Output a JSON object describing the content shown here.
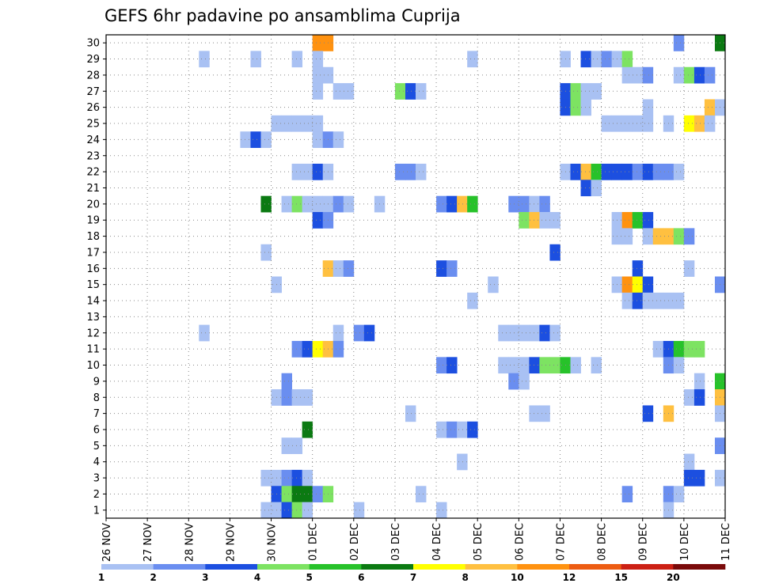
{
  "chart_data": {
    "type": "heatmap",
    "title": "GEFS 6hr padavine po ansamblima Cuprija",
    "x_start": "2025-11-26 00",
    "x_step_hours": 6,
    "x_ticks": [
      "26 NOV",
      "27 NOV",
      "28 NOV",
      "29 NOV",
      "30 NOV",
      "01 DEC",
      "02 DEC",
      "03 DEC",
      "04 DEC",
      "05 DEC",
      "06 DEC",
      "07 DEC",
      "08 DEC",
      "09 DEC",
      "10 DEC",
      "11 DEC"
    ],
    "y_ticks": [
      "1",
      "2",
      "3",
      "4",
      "5",
      "6",
      "7",
      "8",
      "9",
      "10",
      "11",
      "12",
      "13",
      "14",
      "15",
      "16",
      "17",
      "18",
      "19",
      "20",
      "21",
      "22",
      "23",
      "24",
      "25",
      "26",
      "27",
      "28",
      "29",
      "30"
    ],
    "grid": true,
    "legend": {
      "placement": "bottom",
      "labels": [
        "1",
        "2",
        "3",
        "4",
        "5",
        "6",
        "7",
        "8",
        "10",
        "12",
        "15",
        "20"
      ],
      "colors": [
        "#a9c1f3",
        "#6a8ef0",
        "#1c4fe0",
        "#7de362",
        "#27c22a",
        "#0b7a12",
        "#ffff00",
        "#ffc040",
        "#ff9210",
        "#ed5c12",
        "#cc2014",
        "#7a0a0a"
      ]
    },
    "level_scale": "1 = 1-2, 2 = 2-3, 3 = 3-4, 4 = 4-5, 5 = 5-6, 6 = 6-7, 7 = 7-8, 8 = 8-10, 9 = 10-12, 10 = 12-15, 11 = 15-20",
    "members": [
      {
        "member": 30,
        "cells": [
          [
            20,
            9
          ],
          [
            21,
            9
          ],
          [
            55,
            2
          ],
          [
            59,
            6
          ]
        ]
      },
      {
        "member": 29,
        "cells": [
          [
            9,
            1
          ],
          [
            14,
            1
          ],
          [
            18,
            1
          ],
          [
            20,
            1
          ],
          [
            35,
            1
          ],
          [
            44,
            1
          ],
          [
            46,
            3
          ],
          [
            47,
            1
          ],
          [
            48,
            2
          ],
          [
            49,
            1
          ],
          [
            50,
            4
          ]
        ]
      },
      {
        "member": 28,
        "cells": [
          [
            20,
            1
          ],
          [
            21,
            1
          ],
          [
            50,
            1
          ],
          [
            51,
            1
          ],
          [
            52,
            2
          ],
          [
            55,
            1
          ],
          [
            56,
            4
          ],
          [
            57,
            3
          ],
          [
            58,
            2
          ]
        ]
      },
      {
        "member": 27,
        "cells": [
          [
            20,
            1
          ],
          [
            22,
            1
          ],
          [
            23,
            1
          ],
          [
            28,
            4
          ],
          [
            29,
            3
          ],
          [
            30,
            1
          ],
          [
            44,
            3
          ],
          [
            45,
            4
          ],
          [
            46,
            1
          ],
          [
            47,
            1
          ]
        ]
      },
      {
        "member": 26,
        "cells": [
          [
            44,
            3
          ],
          [
            45,
            4
          ],
          [
            46,
            1
          ],
          [
            52,
            1
          ],
          [
            58,
            8
          ],
          [
            59,
            1
          ]
        ]
      },
      {
        "member": 25,
        "cells": [
          [
            16,
            1
          ],
          [
            17,
            1
          ],
          [
            18,
            1
          ],
          [
            19,
            1
          ],
          [
            20,
            1
          ],
          [
            48,
            1
          ],
          [
            49,
            1
          ],
          [
            50,
            1
          ],
          [
            51,
            1
          ],
          [
            52,
            1
          ],
          [
            54,
            1
          ],
          [
            56,
            7
          ],
          [
            57,
            8
          ],
          [
            58,
            1
          ]
        ]
      },
      {
        "member": 24,
        "cells": [
          [
            13,
            1
          ],
          [
            14,
            3
          ],
          [
            15,
            1
          ],
          [
            20,
            1
          ],
          [
            21,
            2
          ],
          [
            22,
            1
          ]
        ]
      },
      {
        "member": 22,
        "cells": [
          [
            18,
            1
          ],
          [
            19,
            1
          ],
          [
            20,
            3
          ],
          [
            21,
            1
          ],
          [
            28,
            2
          ],
          [
            29,
            2
          ],
          [
            30,
            1
          ],
          [
            44,
            1
          ],
          [
            45,
            3
          ],
          [
            46,
            8
          ],
          [
            47,
            5
          ],
          [
            48,
            3
          ],
          [
            49,
            3
          ],
          [
            50,
            3
          ],
          [
            51,
            2
          ],
          [
            52,
            3
          ],
          [
            53,
            2
          ],
          [
            54,
            2
          ],
          [
            55,
            1
          ]
        ]
      },
      {
        "member": 21,
        "cells": [
          [
            46,
            3
          ],
          [
            47,
            1
          ]
        ]
      },
      {
        "member": 20,
        "cells": [
          [
            15,
            6
          ],
          [
            17,
            1
          ],
          [
            18,
            4
          ],
          [
            19,
            1
          ],
          [
            20,
            1
          ],
          [
            21,
            1
          ],
          [
            22,
            2
          ],
          [
            23,
            1
          ],
          [
            26,
            1
          ],
          [
            32,
            2
          ],
          [
            33,
            3
          ],
          [
            34,
            8
          ],
          [
            35,
            5
          ],
          [
            39,
            2
          ],
          [
            40,
            2
          ],
          [
            41,
            1
          ],
          [
            42,
            2
          ]
        ]
      },
      {
        "member": 19,
        "cells": [
          [
            20,
            3
          ],
          [
            21,
            2
          ],
          [
            40,
            4
          ],
          [
            41,
            8
          ],
          [
            42,
            1
          ],
          [
            43,
            1
          ],
          [
            49,
            1
          ],
          [
            50,
            9
          ],
          [
            51,
            5
          ],
          [
            52,
            3
          ]
        ]
      },
      {
        "member": 18,
        "cells": [
          [
            49,
            1
          ],
          [
            50,
            1
          ],
          [
            52,
            1
          ],
          [
            53,
            8
          ],
          [
            54,
            8
          ],
          [
            55,
            4
          ],
          [
            56,
            2
          ]
        ]
      },
      {
        "member": 17,
        "cells": [
          [
            15,
            1
          ],
          [
            43,
            3
          ]
        ]
      },
      {
        "member": 16,
        "cells": [
          [
            21,
            8
          ],
          [
            22,
            1
          ],
          [
            23,
            2
          ],
          [
            32,
            3
          ],
          [
            33,
            2
          ],
          [
            51,
            3
          ],
          [
            56,
            1
          ]
        ]
      },
      {
        "member": 15,
        "cells": [
          [
            16,
            1
          ],
          [
            37,
            1
          ],
          [
            49,
            1
          ],
          [
            50,
            9
          ],
          [
            51,
            7
          ],
          [
            52,
            3
          ],
          [
            59,
            2
          ]
        ]
      },
      {
        "member": 14,
        "cells": [
          [
            35,
            1
          ],
          [
            50,
            1
          ],
          [
            51,
            3
          ],
          [
            52,
            1
          ],
          [
            53,
            1
          ],
          [
            54,
            1
          ],
          [
            55,
            1
          ]
        ]
      },
      {
        "member": 12,
        "cells": [
          [
            9,
            1
          ],
          [
            22,
            1
          ],
          [
            24,
            2
          ],
          [
            25,
            3
          ],
          [
            38,
            1
          ],
          [
            39,
            1
          ],
          [
            40,
            1
          ],
          [
            41,
            1
          ],
          [
            42,
            3
          ],
          [
            43,
            1
          ]
        ]
      },
      {
        "member": 11,
        "cells": [
          [
            18,
            2
          ],
          [
            19,
            3
          ],
          [
            20,
            7
          ],
          [
            21,
            8
          ],
          [
            22,
            2
          ],
          [
            53,
            1
          ],
          [
            54,
            3
          ],
          [
            55,
            5
          ],
          [
            56,
            4
          ],
          [
            57,
            4
          ]
        ]
      },
      {
        "member": 10,
        "cells": [
          [
            32,
            2
          ],
          [
            33,
            3
          ],
          [
            38,
            1
          ],
          [
            39,
            1
          ],
          [
            40,
            1
          ],
          [
            41,
            3
          ],
          [
            42,
            4
          ],
          [
            43,
            4
          ],
          [
            44,
            5
          ],
          [
            45,
            1
          ],
          [
            47,
            1
          ],
          [
            54,
            2
          ],
          [
            55,
            1
          ]
        ]
      },
      {
        "member": 9,
        "cells": [
          [
            17,
            2
          ],
          [
            39,
            2
          ],
          [
            40,
            1
          ],
          [
            57,
            1
          ],
          [
            59,
            5
          ]
        ]
      },
      {
        "member": 8,
        "cells": [
          [
            16,
            1
          ],
          [
            17,
            2
          ],
          [
            18,
            1
          ],
          [
            19,
            1
          ],
          [
            56,
            1
          ],
          [
            57,
            3
          ],
          [
            59,
            8
          ]
        ]
      },
      {
        "member": 7,
        "cells": [
          [
            29,
            1
          ],
          [
            41,
            1
          ],
          [
            42,
            1
          ],
          [
            52,
            3
          ],
          [
            54,
            8
          ],
          [
            59,
            1
          ]
        ]
      },
      {
        "member": 6,
        "cells": [
          [
            19,
            6
          ],
          [
            32,
            1
          ],
          [
            33,
            2
          ],
          [
            34,
            1
          ],
          [
            35,
            3
          ]
        ]
      },
      {
        "member": 5,
        "cells": [
          [
            17,
            1
          ],
          [
            18,
            1
          ],
          [
            59,
            2
          ]
        ]
      },
      {
        "member": 4,
        "cells": [
          [
            34,
            1
          ],
          [
            56,
            1
          ]
        ]
      },
      {
        "member": 3,
        "cells": [
          [
            15,
            1
          ],
          [
            16,
            1
          ],
          [
            17,
            2
          ],
          [
            18,
            3
          ],
          [
            19,
            1
          ],
          [
            56,
            3
          ],
          [
            57,
            3
          ],
          [
            59,
            1
          ]
        ]
      },
      {
        "member": 2,
        "cells": [
          [
            16,
            3
          ],
          [
            17,
            4
          ],
          [
            18,
            6
          ],
          [
            19,
            6
          ],
          [
            20,
            2
          ],
          [
            21,
            4
          ],
          [
            30,
            1
          ],
          [
            50,
            2
          ],
          [
            54,
            2
          ],
          [
            55,
            1
          ]
        ]
      },
      {
        "member": 1,
        "cells": [
          [
            15,
            1
          ],
          [
            16,
            1
          ],
          [
            17,
            3
          ],
          [
            18,
            4
          ],
          [
            19,
            1
          ],
          [
            24,
            1
          ],
          [
            32,
            1
          ],
          [
            54,
            1
          ]
        ]
      }
    ]
  }
}
